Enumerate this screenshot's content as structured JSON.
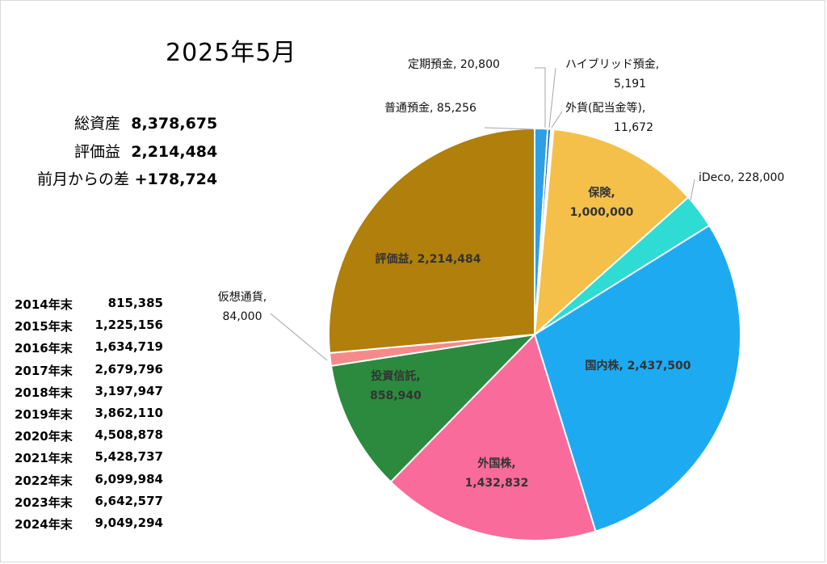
{
  "title": "2025年5月",
  "summary": {
    "total_assets_label": "総資産",
    "total_assets_value": "8,378,675",
    "unrealized_gain_label": "評価益",
    "unrealized_gain_value": "2,214,484",
    "diff_label": "前月からの差",
    "diff_value": "+178,724"
  },
  "history": [
    {
      "year": "2014年末",
      "value": "815,385"
    },
    {
      "year": "2015年末",
      "value": "1,225,156"
    },
    {
      "year": "2016年末",
      "value": "1,634,719"
    },
    {
      "year": "2017年末",
      "value": "2,679,796"
    },
    {
      "year": "2018年末",
      "value": "3,197,947"
    },
    {
      "year": "2019年末",
      "value": "3,862,110"
    },
    {
      "year": "2020年末",
      "value": "4,508,878"
    },
    {
      "year": "2021年末",
      "value": "5,428,737"
    },
    {
      "year": "2022年末",
      "value": "6,099,984"
    },
    {
      "year": "2023年末",
      "value": "6,642,577"
    },
    {
      "year": "2024年末",
      "value": "9,049,294"
    }
  ],
  "chart_data": {
    "type": "pie",
    "title": "",
    "slices": [
      {
        "name": "普通預金",
        "value": 85256,
        "value_label": "85,256",
        "color": "#2e9ee6"
      },
      {
        "name": "定期預金",
        "value": 20800,
        "value_label": "20,800",
        "color": "#1f6fb5"
      },
      {
        "name": "ハイブリッド預金",
        "value": 5191,
        "value_label": "5,191",
        "color": "#8fd3f5"
      },
      {
        "name": "外貨(配当金等)",
        "value": 11672,
        "value_label": "11,672",
        "color": "#f7e6a8"
      },
      {
        "name": "保険",
        "value": 1000000,
        "value_label": "1,000,000",
        "color": "#f4c04a"
      },
      {
        "name": "iDeco",
        "value": 228000,
        "value_label": "228,000",
        "color": "#2fdcd4"
      },
      {
        "name": "国内株",
        "value": 2437500,
        "value_label": "2,437,500",
        "color": "#1eaaf1"
      },
      {
        "name": "外国株",
        "value": 1432832,
        "value_label": "1,432,832",
        "color": "#f96b9b"
      },
      {
        "name": "投資信託",
        "value": 858940,
        "value_label": "858,940",
        "color": "#2b8a3e"
      },
      {
        "name": "仮想通貨",
        "value": 84000,
        "value_label": "84,000",
        "color": "#f58a8a"
      },
      {
        "name": "評価益",
        "value": 2214484,
        "value_label": "2,214,484",
        "color": "#b07f0c"
      }
    ]
  }
}
